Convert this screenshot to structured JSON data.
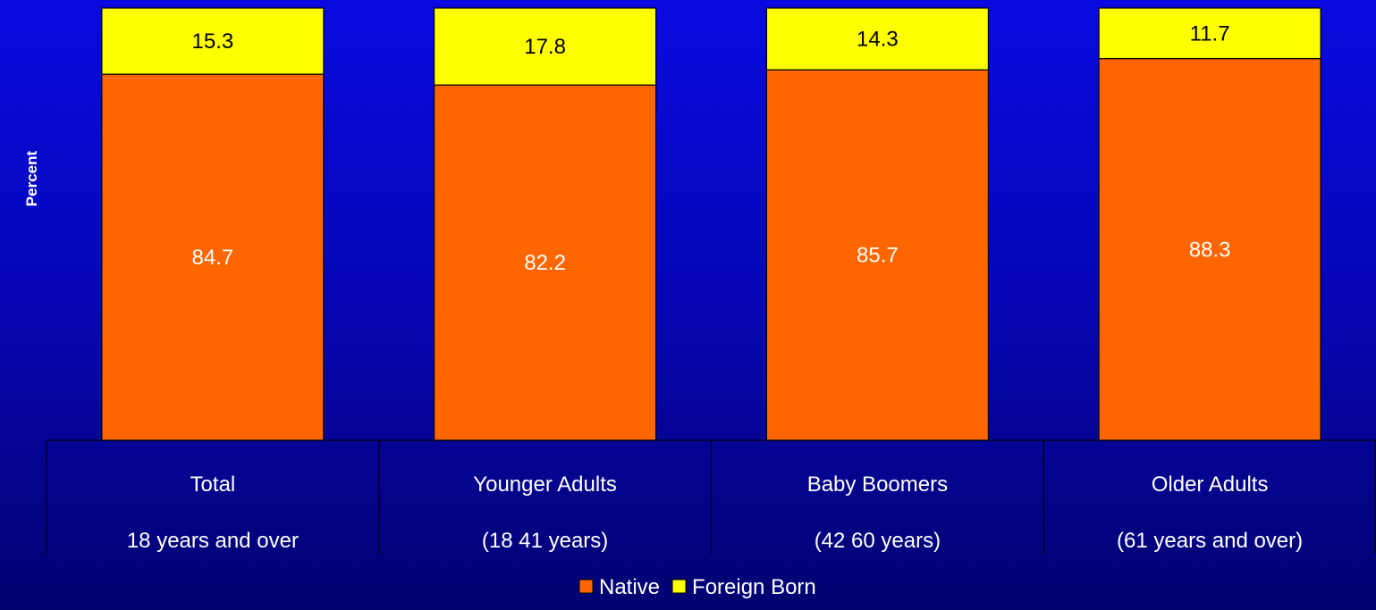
{
  "chart_data": {
    "type": "bar",
    "stacked": true,
    "ylabel": "Percent",
    "ylim": [
      0,
      100
    ],
    "grid": false,
    "legend_position": "bottom-center",
    "categories": [
      {
        "line1": "Total",
        "line2": "18 years and over"
      },
      {
        "line1": "Younger Adults",
        "line2": "(18 41 years)"
      },
      {
        "line1": "Baby Boomers",
        "line2": "(42 60 years)"
      },
      {
        "line1": "Older Adults",
        "line2": "(61 years and over)"
      }
    ],
    "series": [
      {
        "name": "Native",
        "color": "#ff6600",
        "label_color": "#ffffff",
        "values": [
          84.7,
          82.2,
          85.7,
          88.3
        ],
        "labels": [
          "84.7",
          "82.2",
          "85.7",
          "88.3"
        ]
      },
      {
        "name": "Foreign Born",
        "color": "#ffff00",
        "label_color": "#000000",
        "values": [
          15.3,
          17.8,
          14.3,
          11.7
        ],
        "labels": [
          "15.3",
          "17.8",
          "14.3",
          "11.7"
        ]
      }
    ]
  }
}
